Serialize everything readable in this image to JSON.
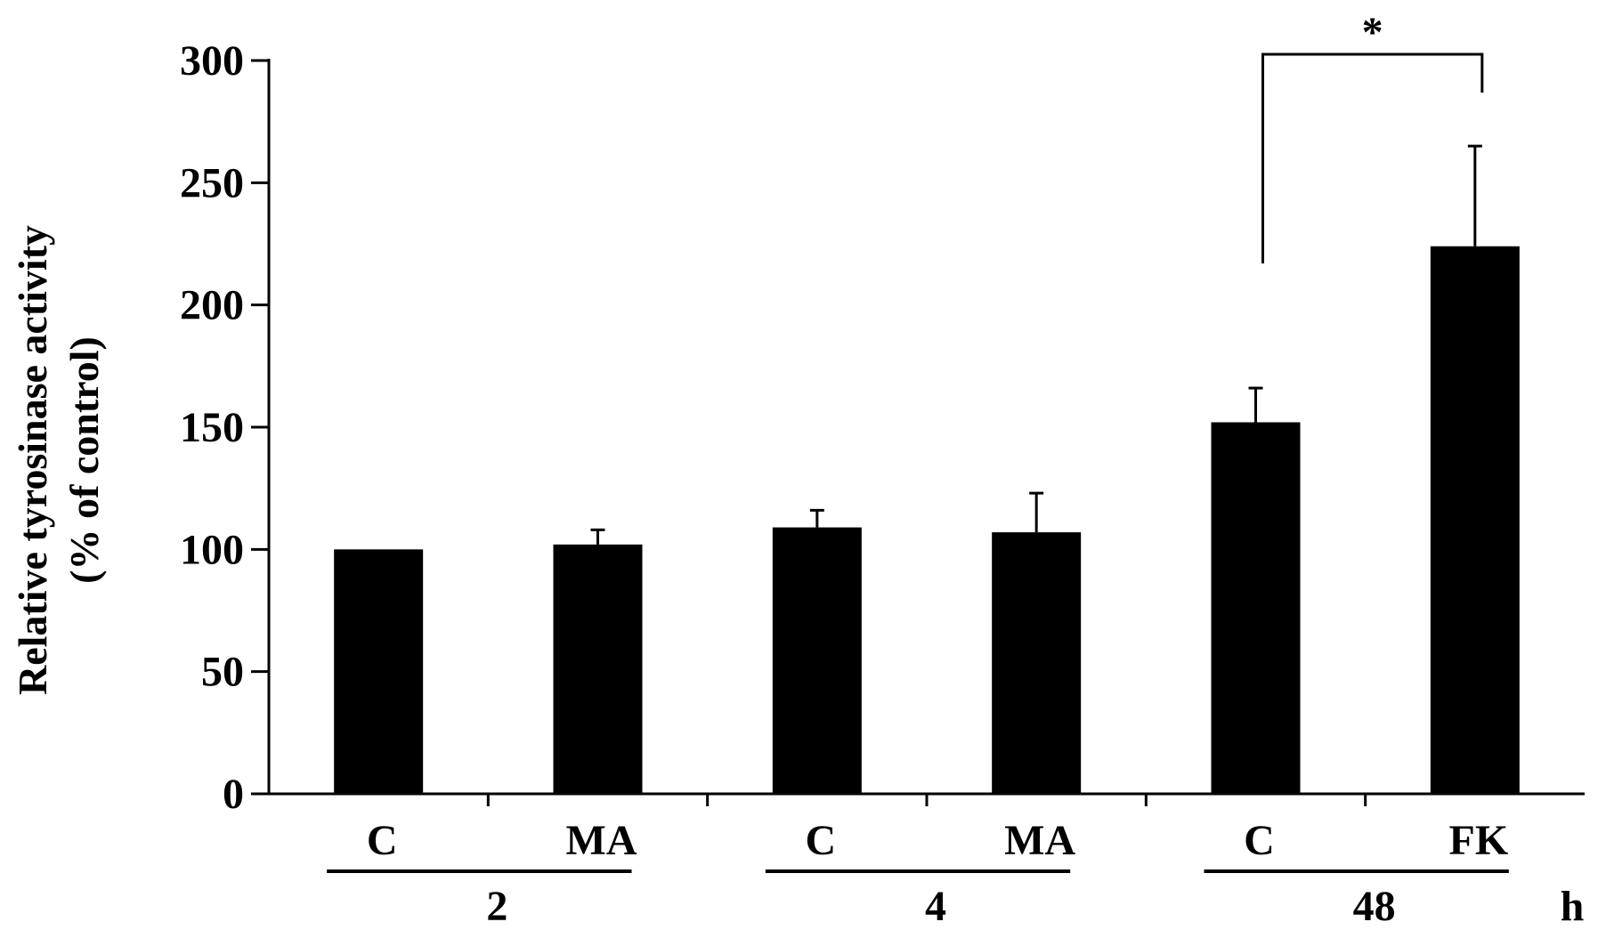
{
  "chart_data": {
    "type": "bar",
    "title": "",
    "xlabel": "",
    "ylabel": "Relative tyrosinase activity",
    "ylabel_line2": "(% of control)",
    "ylim": [
      0,
      300
    ],
    "yticks": [
      0,
      50,
      100,
      150,
      200,
      250,
      300
    ],
    "categories": [
      "C",
      "MA",
      "C",
      "MA",
      "C",
      "FK"
    ],
    "values": [
      100,
      102,
      109,
      107,
      152,
      224
    ],
    "errors": [
      0,
      6,
      7,
      16,
      14,
      41
    ],
    "groups": [
      {
        "label": "2",
        "members": [
          0,
          1
        ]
      },
      {
        "label": "4",
        "members": [
          2,
          3
        ]
      },
      {
        "label": "48",
        "members": [
          4,
          5
        ]
      }
    ],
    "group_unit": "h",
    "significance": [
      {
        "from": 4,
        "to": 5,
        "label": "*"
      }
    ],
    "bar_color": "#000000",
    "grid": false,
    "legend": "none"
  }
}
